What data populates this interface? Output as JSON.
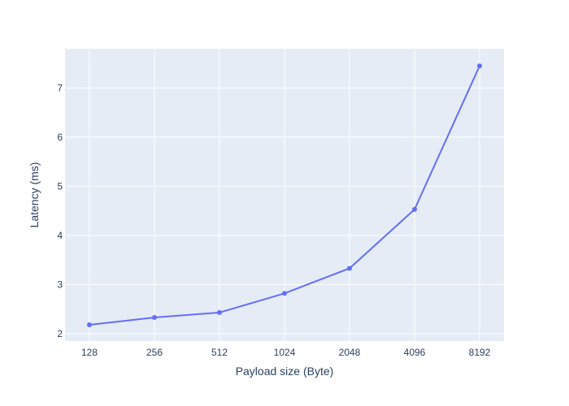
{
  "chart_data": {
    "type": "line",
    "x": [
      "128",
      "256",
      "512",
      "1024",
      "2048",
      "4096",
      "8192"
    ],
    "series": [
      {
        "values": [
          2.18,
          2.33,
          2.43,
          2.82,
          3.33,
          4.53,
          7.45
        ]
      }
    ],
    "xlabel": "Payload size (Byte)",
    "ylabel": "Latency (ms)",
    "ylim": [
      1.85,
      7.8
    ],
    "yticks": [
      2,
      3,
      4,
      5,
      6,
      7
    ],
    "grid": true,
    "colors": {
      "line": "#636efa",
      "plot_bg": "#e5ecf6",
      "grid": "#ffffff",
      "text": "#2a3f5f"
    }
  }
}
